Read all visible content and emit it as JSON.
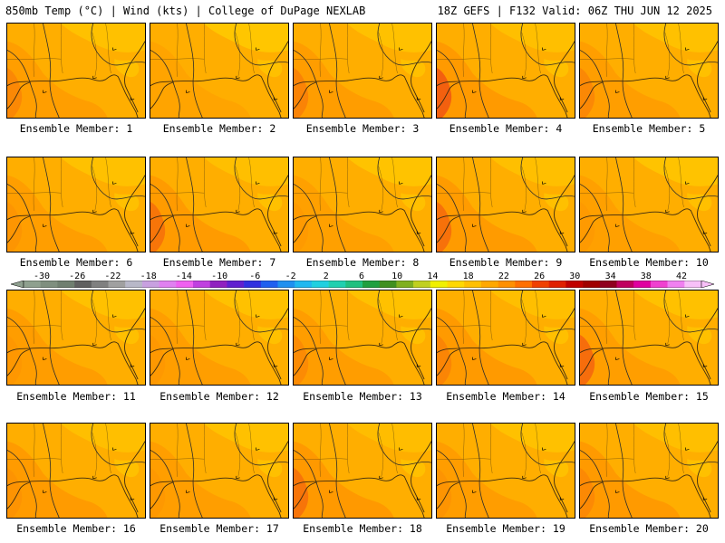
{
  "header": {
    "left_title": "850mb Temp (°C) | Wind (kts) | College of DuPage NEXLAB",
    "right_title": "18Z GEFS | F132 Valid: 06Z THU JUN 12 2025"
  },
  "members": [
    {
      "label": "Ensemble Member: 1",
      "member": 1,
      "warm_west": 0.55,
      "hot_west": 0.25
    },
    {
      "label": "Ensemble Member: 2",
      "member": 2,
      "warm_west": 0.35,
      "hot_west": 0.0
    },
    {
      "label": "Ensemble Member: 3",
      "member": 3,
      "warm_west": 0.6,
      "hot_west": 0.3
    },
    {
      "label": "Ensemble Member: 4",
      "member": 4,
      "warm_west": 0.7,
      "hot_west": 0.7
    },
    {
      "label": "Ensemble Member: 5",
      "member": 5,
      "warm_west": 0.55,
      "hot_west": 0.25
    },
    {
      "label": "Ensemble Member: 6",
      "member": 6,
      "warm_west": 0.55,
      "hot_west": 0.1
    },
    {
      "label": "Ensemble Member: 7",
      "member": 7,
      "warm_west": 0.65,
      "hot_west": 0.45
    },
    {
      "label": "Ensemble Member: 8",
      "member": 8,
      "warm_west": 0.5,
      "hot_west": 0.05
    },
    {
      "label": "Ensemble Member: 9",
      "member": 9,
      "warm_west": 0.65,
      "hot_west": 0.5
    },
    {
      "label": "Ensemble Member: 10",
      "member": 10,
      "warm_west": 0.5,
      "hot_west": 0.05
    },
    {
      "label": "Ensemble Member: 11",
      "member": 11,
      "warm_west": 0.6,
      "hot_west": 0.05
    },
    {
      "label": "Ensemble Member: 12",
      "member": 12,
      "warm_west": 0.55,
      "hot_west": 0.05
    },
    {
      "label": "Ensemble Member: 13",
      "member": 13,
      "warm_west": 0.6,
      "hot_west": 0.2
    },
    {
      "label": "Ensemble Member: 14",
      "member": 14,
      "warm_west": 0.7,
      "hot_west": 0.25
    },
    {
      "label": "Ensemble Member: 15",
      "member": 15,
      "warm_west": 0.55,
      "hot_west": 0.55
    },
    {
      "label": "Ensemble Member: 16",
      "member": 16,
      "warm_west": 0.65,
      "hot_west": 0.1
    },
    {
      "label": "Ensemble Member: 17",
      "member": 17,
      "warm_west": 0.55,
      "hot_west": 0.05
    },
    {
      "label": "Ensemble Member: 18",
      "member": 18,
      "warm_west": 0.75,
      "hot_west": 0.45
    },
    {
      "label": "Ensemble Member: 19",
      "member": 19,
      "warm_west": 0.6,
      "hot_west": 0.1
    },
    {
      "label": "Ensemble Member: 20",
      "member": 20,
      "warm_west": 0.7,
      "hot_west": 0.2
    }
  ],
  "colorbar": {
    "ticks": [
      "-30",
      "-26",
      "-22",
      "-18",
      "-14",
      "-10",
      "-6",
      "-2",
      "2",
      "6",
      "10",
      "14",
      "18",
      "22",
      "26",
      "30",
      "34",
      "38",
      "42"
    ],
    "colors": [
      "#8fa08f",
      "#7f8f7f",
      "#707f70",
      "#606060",
      "#808080",
      "#a0a0a0",
      "#b8b8c8",
      "#c8a0e0",
      "#e080f0",
      "#f060f0",
      "#c040e0",
      "#9020c0",
      "#6020d0",
      "#3030e0",
      "#2060f0",
      "#2090f0",
      "#20b8f0",
      "#20d0e0",
      "#20d0b0",
      "#20c080",
      "#20a040",
      "#409020",
      "#80b020",
      "#c0d020",
      "#f0f000",
      "#ffd800",
      "#ffc000",
      "#ffa800",
      "#ff9000",
      "#ff7000",
      "#f04000",
      "#e02000",
      "#c00000",
      "#a00000",
      "#900020",
      "#c00060",
      "#e000a0",
      "#f040d0",
      "#f080f0",
      "#f8c0f8"
    ]
  },
  "colors": {
    "base_orange": "#ffae00",
    "cool_yellow": "#ffd000",
    "warm_orange": "#ff9100",
    "hot_red": "#f25a10",
    "coastline": "#3a2a10",
    "contour": "#2b2b2b"
  }
}
